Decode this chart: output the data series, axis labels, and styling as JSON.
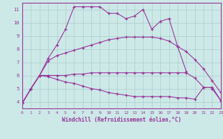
{
  "xlabel": "Windchill (Refroidissement éolien,°C)",
  "xlim": [
    0,
    23
  ],
  "ylim": [
    3.5,
    11.5
  ],
  "xticks": [
    0,
    1,
    2,
    3,
    4,
    5,
    6,
    7,
    8,
    9,
    10,
    11,
    12,
    13,
    14,
    15,
    16,
    17,
    18,
    19,
    20,
    21,
    22,
    23
  ],
  "yticks": [
    4,
    5,
    6,
    7,
    8,
    9,
    10,
    11
  ],
  "bg_color": "#cce9e8",
  "line_color": "#993399",
  "grid_color": "#aacccc",
  "lines": [
    {
      "x": [
        0,
        1,
        2,
        3,
        4,
        5,
        6,
        7,
        8,
        9,
        10,
        11,
        12,
        13,
        14,
        15,
        16,
        17,
        18,
        19,
        20,
        21,
        22,
        23
      ],
      "y": [
        3.9,
        5.0,
        6.0,
        7.3,
        8.3,
        9.5,
        11.2,
        11.2,
        11.2,
        11.2,
        10.7,
        10.7,
        10.3,
        10.5,
        11.0,
        9.5,
        10.1,
        10.3,
        8.2,
        6.3,
        null,
        null,
        5.0,
        4.1
      ]
    },
    {
      "x": [
        0,
        1,
        2,
        3,
        4,
        5,
        6,
        7,
        8,
        9,
        10,
        11,
        12,
        13,
        14,
        15,
        16,
        17,
        18,
        19,
        20,
        21,
        22,
        23
      ],
      "y": [
        3.9,
        5.0,
        6.0,
        7.1,
        7.5,
        7.7,
        7.9,
        8.1,
        8.3,
        8.5,
        8.7,
        8.8,
        8.9,
        8.9,
        8.9,
        8.9,
        8.8,
        8.6,
        8.2,
        7.8,
        7.2,
        6.5,
        5.6,
        4.7
      ]
    },
    {
      "x": [
        0,
        1,
        2,
        3,
        4,
        5,
        6,
        7,
        8,
        9,
        10,
        11,
        12,
        13,
        14,
        15,
        16,
        17,
        18,
        19,
        20,
        21,
        22,
        23
      ],
      "y": [
        3.9,
        5.0,
        6.0,
        6.0,
        6.0,
        6.0,
        6.1,
        6.1,
        6.2,
        6.2,
        6.2,
        6.2,
        6.2,
        6.2,
        6.2,
        6.2,
        6.2,
        6.2,
        6.2,
        6.2,
        5.8,
        5.1,
        5.1,
        4.1
      ]
    },
    {
      "x": [
        0,
        1,
        2,
        3,
        4,
        5,
        6,
        7,
        8,
        9,
        10,
        11,
        12,
        13,
        14,
        15,
        16,
        17,
        18,
        19,
        20,
        21,
        22,
        23
      ],
      "y": [
        3.9,
        5.0,
        6.0,
        5.9,
        5.7,
        5.5,
        5.4,
        5.2,
        5.0,
        4.9,
        4.7,
        4.6,
        4.5,
        4.4,
        4.4,
        4.4,
        4.4,
        4.4,
        4.3,
        4.3,
        4.2,
        5.1,
        5.1,
        4.1
      ]
    }
  ]
}
